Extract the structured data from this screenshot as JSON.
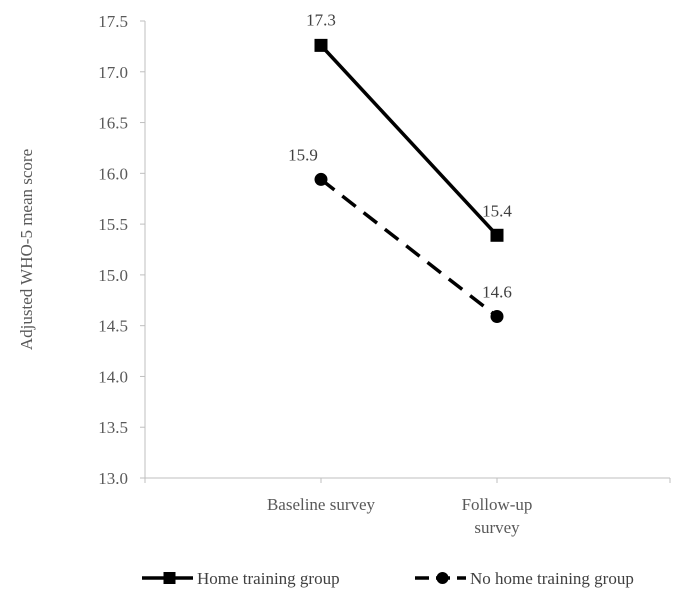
{
  "chart_data": {
    "type": "line",
    "title": "",
    "xlabel": "",
    "ylabel": "Adjusted WHO-5 mean score",
    "ylim": [
      13.0,
      17.5
    ],
    "y_ticks": [
      "13.0",
      "13.5",
      "14.0",
      "14.5",
      "15.0",
      "15.5",
      "16.0",
      "16.5",
      "17.0",
      "17.5"
    ],
    "categories": [
      [
        "Baseline survey"
      ],
      [
        "Follow-up",
        "survey"
      ]
    ],
    "series": [
      {
        "name": "Home training group",
        "values": [
          17.26,
          15.39
        ],
        "labels": [
          "17.3",
          "15.4"
        ],
        "line_style": "solid",
        "marker": "square",
        "color": "#000000"
      },
      {
        "name": "No home training group",
        "values": [
          15.94,
          14.59
        ],
        "labels": [
          "15.9",
          "14.6"
        ],
        "line_style": "dashed",
        "marker": "circle",
        "color": "#000000"
      }
    ],
    "grid": false,
    "legend_position": "bottom"
  }
}
